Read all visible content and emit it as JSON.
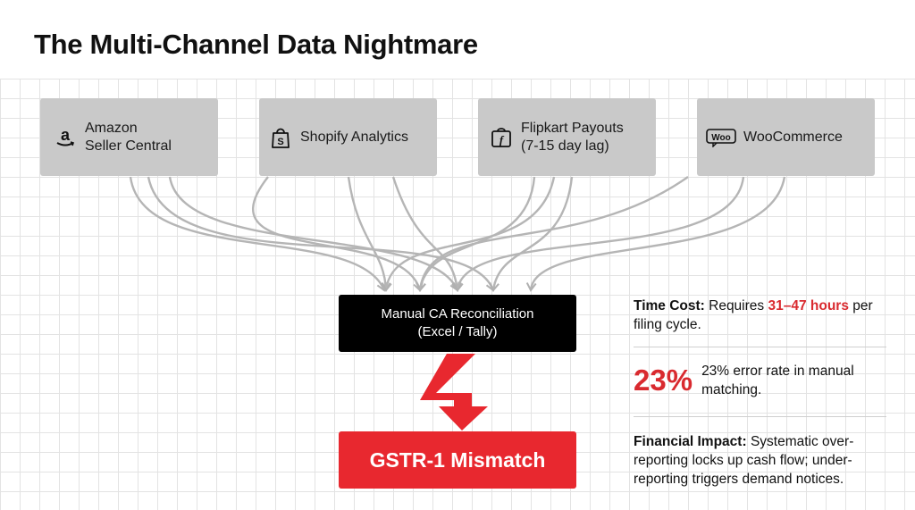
{
  "title": "The Multi-Channel Data Nightmare",
  "sources": [
    {
      "line1": "Amazon",
      "line2": "Seller Central",
      "icon": "amazon-icon"
    },
    {
      "line1": "Shopify Analytics",
      "line2": "",
      "icon": "shopify-bag-icon"
    },
    {
      "line1": "Flipkart Payouts",
      "line2": "(7-15 day lag)",
      "icon": "flipkart-icon"
    },
    {
      "line1": "WooCommerce",
      "line2": "",
      "icon": "woocommerce-icon"
    }
  ],
  "process": {
    "line1": "Manual CA Reconciliation",
    "line2": "(Excel / Tally)"
  },
  "result": {
    "label": "GSTR-1 Mismatch"
  },
  "info": {
    "time_cost": {
      "label": "Time Cost:",
      "text_before": "Requires",
      "highlight": "31–47 hours",
      "text_after": "per filing cycle."
    },
    "error": {
      "big": "23%",
      "text": "23% error rate in manual matching."
    },
    "financial": {
      "label": "Financial Impact:",
      "text": "Systematic over-reporting locks up cash flow; under-reporting triggers demand notices."
    }
  },
  "colors": {
    "source_box": "#c9c9c9",
    "process_box": "#000000",
    "alert_red": "#e8282f",
    "connector": "#b5b5b5"
  }
}
